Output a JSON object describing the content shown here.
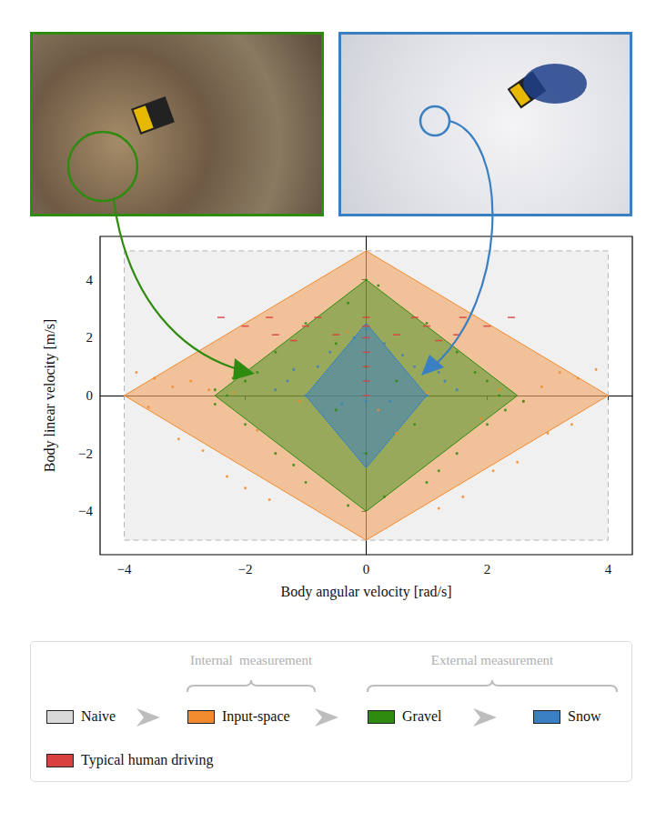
{
  "chart_data": {
    "type": "scatter",
    "xlabel": "Body angular velocity [rad/s]",
    "ylabel": "Body linear velocity [m/s]",
    "xlim": [
      -4.4,
      4.4
    ],
    "ylim": [
      -5.5,
      5.5
    ],
    "xticks": [
      {
        "value": -4,
        "label": "−4"
      },
      {
        "value": -2,
        "label": "−2"
      },
      0,
      2,
      4
    ],
    "yticks": [
      {
        "value": -4,
        "label": "−4"
      },
      {
        "value": -2,
        "label": "−2"
      },
      0,
      2,
      4
    ],
    "grid": false,
    "legend": "bottom",
    "series": [
      {
        "name": "Naive",
        "color": "#d9d9d9",
        "line_style": "dashed",
        "region": [
          [
            -4,
            -5
          ],
          [
            4,
            -5
          ],
          [
            4,
            5
          ],
          [
            -4,
            5
          ]
        ]
      },
      {
        "name": "Input-space",
        "color": "#f28a2e",
        "line_style": "solid",
        "marker": "circle",
        "region": [
          [
            -4,
            0
          ],
          [
            0,
            5
          ],
          [
            4,
            0
          ],
          [
            0,
            -5
          ]
        ],
        "values": [
          [
            -3.8,
            0.8
          ],
          [
            -3.5,
            0.6
          ],
          [
            -3.2,
            0.3
          ],
          [
            -2.9,
            0.5
          ],
          [
            -2.6,
            0.2
          ],
          [
            -3.6,
            -0.4
          ],
          [
            -3.1,
            -1.5
          ],
          [
            -2.7,
            -1.9
          ],
          [
            -2.3,
            -2.8
          ],
          [
            -2.0,
            -3.2
          ],
          [
            -1.6,
            -3.6
          ],
          [
            3.8,
            0.9
          ],
          [
            3.5,
            0.6
          ],
          [
            3.2,
            0.8
          ],
          [
            2.9,
            0.3
          ],
          [
            2.6,
            -0.2
          ],
          [
            3.4,
            -1.0
          ],
          [
            3.0,
            -1.3
          ],
          [
            2.5,
            -2.3
          ],
          [
            2.1,
            -2.6
          ],
          [
            1.6,
            -3.5
          ],
          [
            1.2,
            -3.9
          ],
          [
            -1.1,
            -0.2
          ],
          [
            1.0,
            0.1
          ],
          [
            0.5,
            -1.3
          ],
          [
            -0.3,
            2.2
          ],
          [
            0.2,
            -0.5
          ],
          [
            -2.2,
            0.1
          ],
          [
            2.2,
            0.2
          ],
          [
            -1.8,
            -1.2
          ],
          [
            1.9,
            -0.8
          ]
        ]
      },
      {
        "name": "Gravel",
        "color": "#2e8b0f",
        "line_style": "solid",
        "marker": "circle",
        "region": [
          [
            -2.5,
            0
          ],
          [
            0,
            4
          ],
          [
            2.5,
            0
          ],
          [
            0,
            -4
          ]
        ],
        "values": [
          [
            0,
            4.0
          ],
          [
            0.2,
            3.8
          ],
          [
            -0.3,
            3.2
          ],
          [
            1.0,
            2.5
          ],
          [
            -1.0,
            2.5
          ],
          [
            1.5,
            1.5
          ],
          [
            -1.5,
            1.5
          ],
          [
            2.0,
            0.5
          ],
          [
            -2.0,
            0.5
          ],
          [
            2.2,
            0
          ],
          [
            -2.3,
            0
          ],
          [
            -2.5,
            0.2
          ],
          [
            2.6,
            -0.2
          ],
          [
            -2.0,
            -1.0
          ],
          [
            2.0,
            -1.0
          ],
          [
            -1.5,
            -2.0
          ],
          [
            1.5,
            -2.0
          ],
          [
            -1.0,
            -3.0
          ],
          [
            1.0,
            -3.0
          ],
          [
            -0.3,
            -3.8
          ],
          [
            0.3,
            -3.5
          ],
          [
            0,
            1.0
          ],
          [
            0.5,
            0.5
          ],
          [
            -0.5,
            -0.5
          ],
          [
            0,
            -2.0
          ],
          [
            -0.5,
            1.8
          ],
          [
            0.8,
            -1.0
          ],
          [
            -2.5,
            -0.3
          ],
          [
            -1.8,
            0.8
          ],
          [
            1.8,
            0.8
          ],
          [
            -2.2,
            0.6
          ],
          [
            2.3,
            -0.5
          ],
          [
            -1.2,
            -2.4
          ],
          [
            1.2,
            -2.6
          ]
        ]
      },
      {
        "name": "Snow",
        "color": "#3a7fc1",
        "line_style": "solid",
        "marker": "circle",
        "region": [
          [
            -1.0,
            0
          ],
          [
            0,
            2.5
          ],
          [
            1.0,
            0
          ],
          [
            0,
            -2.5
          ]
        ],
        "values": [
          [
            0,
            2.3
          ],
          [
            -0.2,
            2.0
          ],
          [
            0.3,
            1.8
          ],
          [
            -0.8,
            1.0
          ],
          [
            0.8,
            1.0
          ],
          [
            -1.3,
            0.5
          ],
          [
            1.3,
            0.5
          ],
          [
            -1.5,
            0.2
          ],
          [
            1.5,
            0.2
          ],
          [
            -1.0,
            0
          ],
          [
            1.0,
            0
          ],
          [
            0,
            0.5
          ],
          [
            0.4,
            -0.2
          ],
          [
            -0.4,
            -0.3
          ],
          [
            0,
            -0.2
          ],
          [
            -0.6,
            1.5
          ],
          [
            0.6,
            1.4
          ],
          [
            1.2,
            0.8
          ],
          [
            -1.2,
            0.9
          ]
        ]
      },
      {
        "name": "Typical human driving",
        "color": "#d94040",
        "marker": "dash",
        "values": [
          [
            -2.4,
            2.7
          ],
          [
            -1.6,
            2.7
          ],
          [
            -0.8,
            2.7
          ],
          [
            0,
            2.7
          ],
          [
            0.8,
            2.7
          ],
          [
            1.6,
            2.7
          ],
          [
            2.4,
            2.7
          ],
          [
            -2.0,
            2.4
          ],
          [
            -1.0,
            2.4
          ],
          [
            0,
            2.4
          ],
          [
            1.0,
            2.4
          ],
          [
            2.0,
            2.4
          ],
          [
            -1.5,
            2.1
          ],
          [
            -0.5,
            2.1
          ],
          [
            0.5,
            2.1
          ],
          [
            1.5,
            2.1
          ],
          [
            -1.2,
            1.9
          ],
          [
            1.2,
            1.9
          ],
          [
            0,
            0
          ],
          [
            0,
            0.5
          ],
          [
            0,
            1.0
          ],
          [
            0,
            1.5
          ],
          [
            0,
            2.0
          ]
        ]
      }
    ],
    "legend_groups": [
      {
        "label": "Internal  measurement",
        "members": [
          "Input-space"
        ]
      },
      {
        "label": "External measurement",
        "members": [
          "Gravel",
          "Snow"
        ]
      }
    ]
  }
}
